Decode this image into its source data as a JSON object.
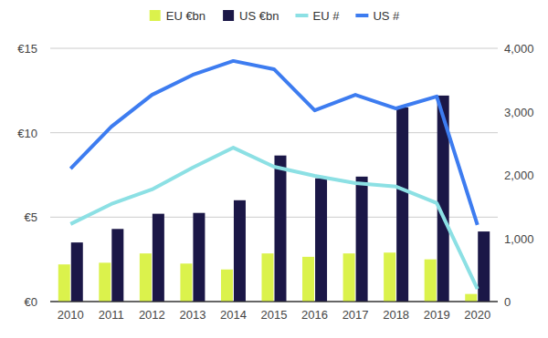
{
  "chart_data": {
    "type": "combo",
    "categories": [
      "2010",
      "2011",
      "2012",
      "2013",
      "2014",
      "2015",
      "2016",
      "2017",
      "2018",
      "2019",
      "2020"
    ],
    "series": [
      {
        "name": "EU €bn",
        "type": "bar",
        "color": "#dbf24c",
        "values": [
          2.2,
          2.3,
          2.85,
          2.25,
          1.9,
          2.85,
          2.65,
          2.85,
          2.9,
          2.5,
          0.45
        ]
      },
      {
        "name": "US €bn",
        "type": "bar",
        "color": "#1b1747",
        "values": [
          3.5,
          4.3,
          5.2,
          5.25,
          6.0,
          8.65,
          7.3,
          7.4,
          11.5,
          12.2,
          4.15
        ]
      },
      {
        "name": "EU #",
        "type": "line",
        "axis": "y2",
        "color": "#8ce0e4",
        "values": [
          1225,
          1540,
          1770,
          2115,
          2430,
          2130,
          1985,
          1870,
          1815,
          1555,
          200
        ]
      },
      {
        "name": "US #",
        "type": "line",
        "axis": "y2",
        "color": "#3d7cf0",
        "values": [
          2100,
          2760,
          3265,
          3580,
          3800,
          3670,
          3020,
          3265,
          3050,
          3240,
          1210
        ]
      }
    ],
    "ylim": [
      0,
      15
    ],
    "yticks": [
      {
        "value": 0,
        "label": "€0"
      },
      {
        "value": 5,
        "label": "€5"
      },
      {
        "value": 10,
        "label": "€10"
      },
      {
        "value": 15,
        "label": "€15"
      }
    ],
    "y2lim": [
      0,
      4000
    ],
    "y2ticks": [
      0,
      {
        "value": 1000,
        "label": "1,000"
      },
      {
        "value": 2000,
        "label": "2,000"
      },
      {
        "value": 3000,
        "label": "3,000"
      },
      {
        "value": 4000,
        "label": "4,000"
      }
    ],
    "grid": true,
    "legend": "top"
  }
}
